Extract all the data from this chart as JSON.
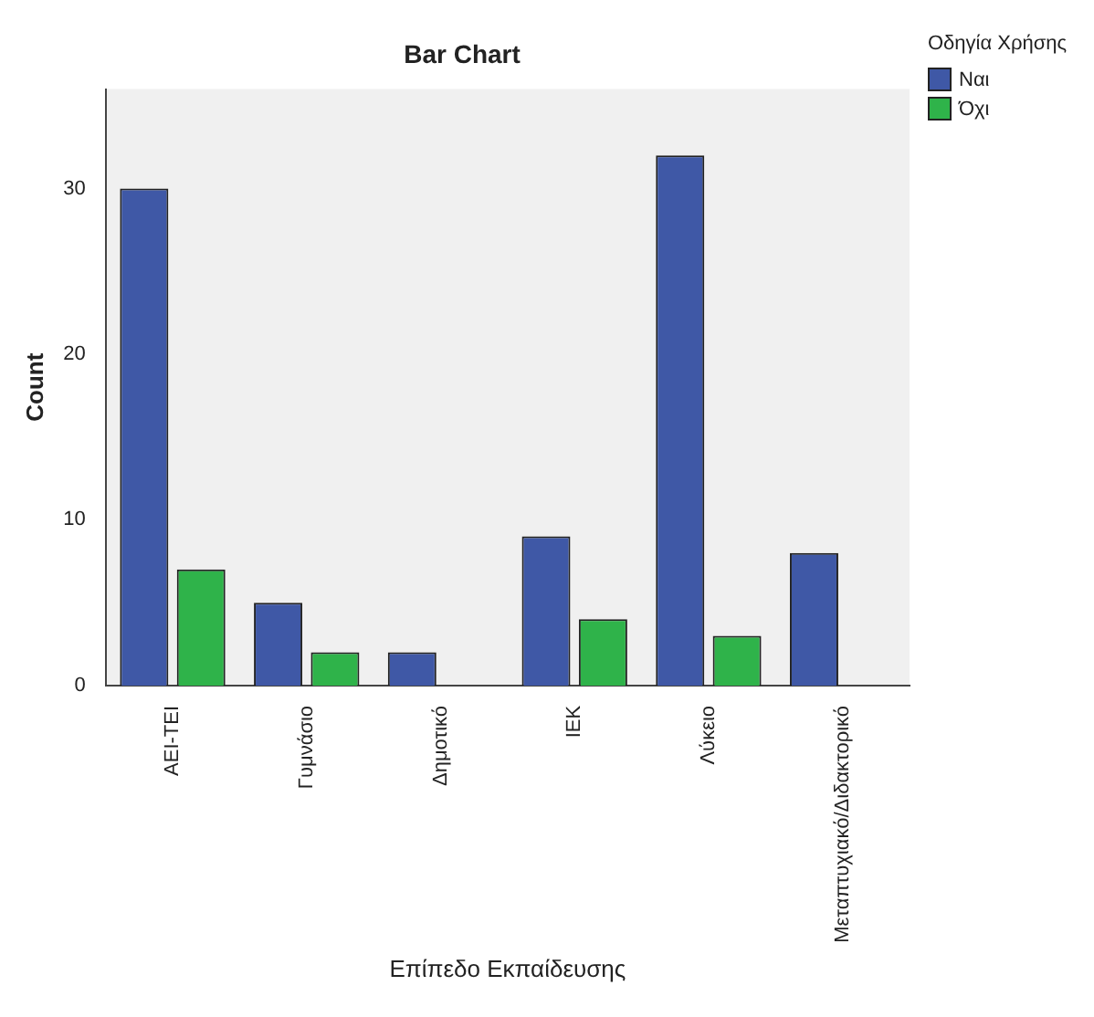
{
  "chart_data": {
    "type": "bar",
    "title": "Bar Chart",
    "xlabel": "Επίπεδο Εκπαίδευσης",
    "ylabel": "Count",
    "categories": [
      "ΑΕΙ-ΤΕΙ",
      "Γυμνάσιο",
      "Δημοτικό",
      "ΙΕΚ",
      "Λύκειο",
      "Μεταπτυχιακό/Διδακτορικό"
    ],
    "series": [
      {
        "name": "Ναι",
        "color": "#3f58a6",
        "values": [
          30,
          5,
          2,
          9,
          32,
          8
        ]
      },
      {
        "name": "Όχι",
        "color": "#2fb34a",
        "values": [
          7,
          2,
          0,
          4,
          3,
          0
        ]
      }
    ],
    "ylim": [
      0,
      36
    ],
    "yticks": [
      0,
      10,
      20,
      30
    ],
    "grid": false,
    "legend": "top right",
    "legend_title": "Οδηγία Χρήσης"
  }
}
